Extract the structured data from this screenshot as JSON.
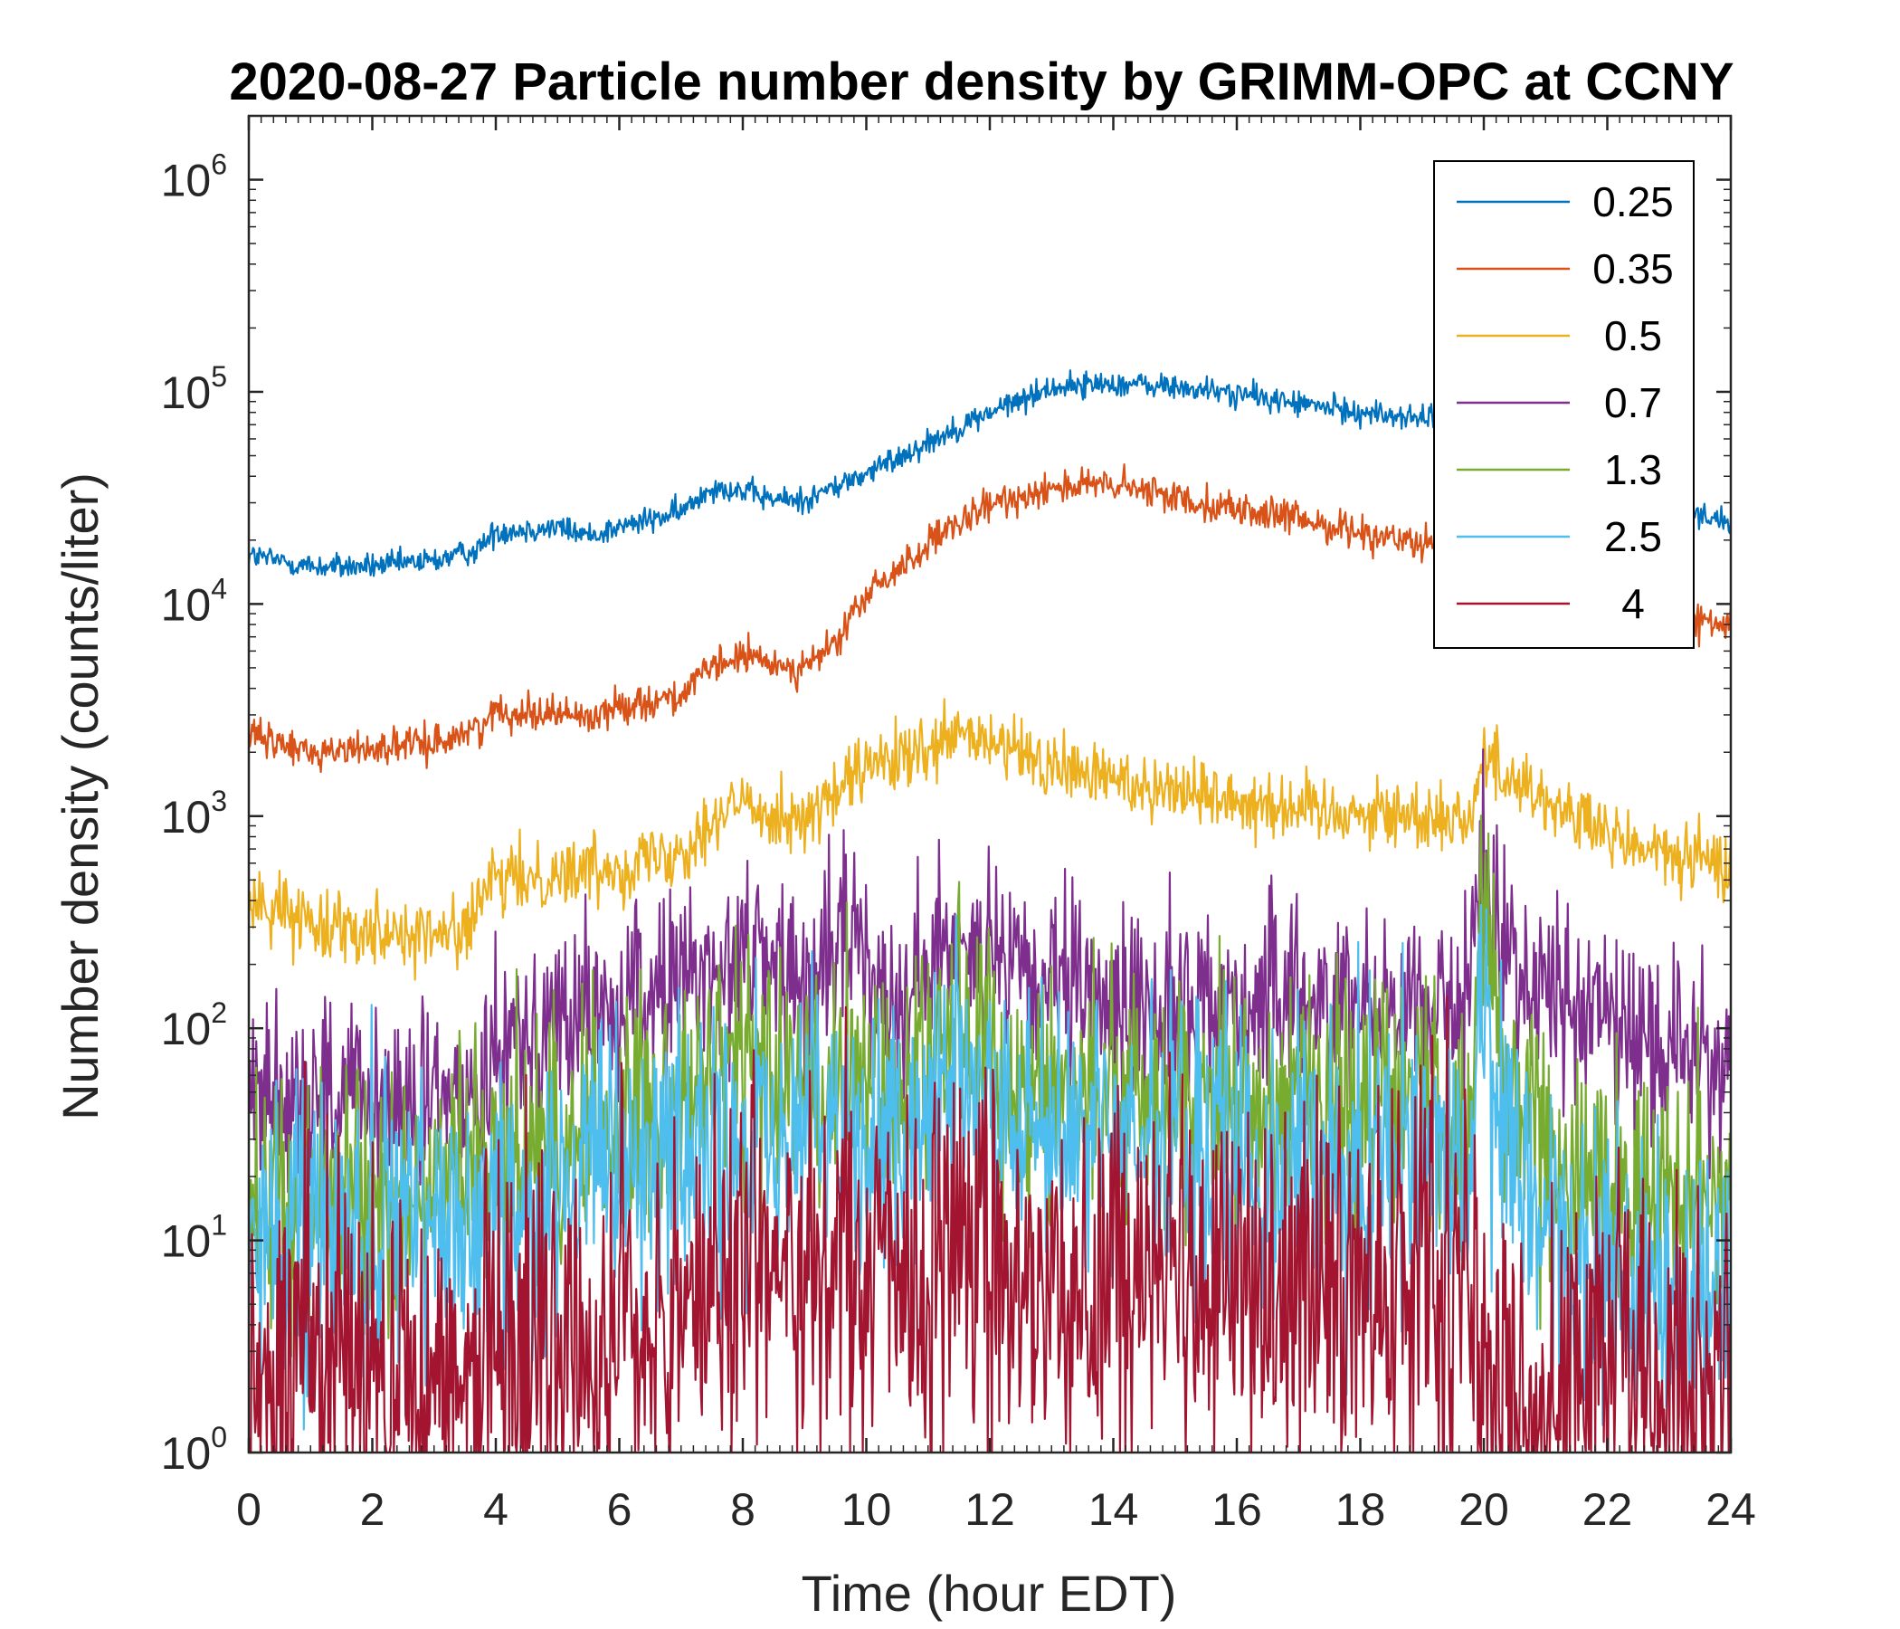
{
  "chart_data": {
    "type": "line",
    "title": "2020-08-27 Particle number density by GRIMM-OPC at CCNY",
    "xlabel": "Time (hour EDT)",
    "ylabel": "Number density (counts/liter)",
    "xlim": [
      0,
      24
    ],
    "ylim": [
      1,
      2000000
    ],
    "yscale": "log",
    "x_ticks": [
      0,
      2,
      4,
      6,
      8,
      10,
      12,
      14,
      16,
      18,
      20,
      22,
      24
    ],
    "y_ticks": [
      {
        "base": "10",
        "exp": "0"
      },
      {
        "base": "10",
        "exp": "1"
      },
      {
        "base": "10",
        "exp": "2"
      },
      {
        "base": "10",
        "exp": "3"
      },
      {
        "base": "10",
        "exp": "4"
      },
      {
        "base": "10",
        "exp": "5"
      },
      {
        "base": "10",
        "exp": "6"
      }
    ],
    "grid": false,
    "legend_position": "top-right",
    "series": [
      {
        "name": "0.25",
        "color": "#0072BD",
        "x": [
          0,
          1,
          2,
          3,
          3.7,
          4,
          5,
          5.5,
          6,
          7,
          7.5,
          8,
          8.5,
          9,
          10,
          11,
          12,
          13,
          14,
          15,
          16,
          17,
          18,
          19,
          20,
          21,
          22,
          23,
          24
        ],
        "y": [
          17000,
          15000,
          15000,
          16000,
          18000,
          22000,
          23000,
          21000,
          23000,
          27000,
          36000,
          34000,
          31000,
          31000,
          41000,
          58000,
          80000,
          105000,
          110000,
          105000,
          98000,
          88000,
          80000,
          75000,
          68000,
          52000,
          40000,
          30000,
          24000
        ],
        "noise": 0.03
      },
      {
        "name": "0.35",
        "color": "#D95319",
        "x": [
          0,
          1,
          2,
          3,
          3.7,
          4,
          5,
          5.5,
          6,
          7,
          7.5,
          8,
          8.5,
          9,
          9.5,
          10,
          11,
          12,
          13,
          14,
          15,
          16,
          17,
          18,
          19,
          20,
          21,
          22,
          23,
          24
        ],
        "y": [
          2400,
          2000,
          2100,
          2200,
          2600,
          3100,
          3100,
          2900,
          3300,
          3700,
          5000,
          5700,
          5200,
          5000,
          6500,
          11000,
          19000,
          29000,
          36000,
          36000,
          32000,
          28000,
          25000,
          22000,
          19000,
          16000,
          12500,
          10000,
          8500,
          8000
        ],
        "noise": 0.04
      },
      {
        "name": "0.5",
        "color": "#EDB120",
        "x": [
          0,
          1,
          2,
          3,
          3.6,
          3.9,
          5,
          6,
          7,
          7.5,
          8,
          8.5,
          9,
          9.5,
          10,
          11,
          11.5,
          12,
          13,
          14,
          15,
          16,
          17,
          18,
          19,
          19.8,
          20,
          20.5,
          21,
          22,
          23,
          24
        ],
        "y": [
          400,
          320,
          300,
          270,
          310,
          480,
          540,
          580,
          700,
          950,
          1150,
          1050,
          950,
          1250,
          1700,
          1950,
          2400,
          2200,
          1700,
          1500,
          1350,
          1200,
          1100,
          1050,
          1000,
          1000,
          1900,
          1500,
          1200,
          800,
          650,
          580
        ],
        "noise": 0.08
      },
      {
        "name": "0.7",
        "color": "#7E2F8E",
        "x": [
          0,
          1,
          2,
          3,
          3.6,
          4,
          5,
          6,
          6.5,
          7,
          7.5,
          8,
          8.5,
          9,
          9.5,
          9.8,
          10,
          10.5,
          11,
          11.5,
          12,
          13,
          14,
          15,
          16,
          17,
          18,
          19,
          19.8,
          19.95,
          20.2,
          20.6,
          21,
          22,
          23,
          24
        ],
        "y": [
          55,
          50,
          45,
          42,
          48,
          90,
          110,
          120,
          150,
          160,
          190,
          230,
          210,
          140,
          220,
          330,
          180,
          150,
          170,
          330,
          190,
          150,
          130,
          125,
          130,
          135,
          140,
          130,
          140,
          650,
          300,
          180,
          150,
          110,
          80,
          70
        ],
        "noise": 0.22
      },
      {
        "name": "1.3",
        "color": "#77AC30",
        "x": [
          0,
          1,
          2,
          3,
          4,
          5,
          6,
          7,
          8,
          9,
          10,
          11,
          11.5,
          12,
          13,
          14,
          15,
          16,
          17,
          18,
          19,
          19.8,
          19.95,
          20.3,
          21,
          22,
          23,
          24
        ],
        "y": [
          14,
          15,
          15,
          16,
          25,
          30,
          40,
          50,
          70,
          55,
          50,
          70,
          120,
          60,
          50,
          50,
          50,
          45,
          50,
          50,
          45,
          40,
          420,
          70,
          25,
          18,
          16,
          15
        ],
        "noise": 0.3
      },
      {
        "name": "2.5",
        "color": "#4DBEEE",
        "x": [
          0,
          1,
          2,
          3,
          4,
          5,
          6,
          7,
          8,
          9,
          10,
          11,
          11.5,
          12,
          13,
          14,
          15,
          16,
          17,
          18,
          19,
          19.8,
          19.95,
          20.3,
          21,
          22,
          23,
          24
        ],
        "y": [
          12,
          11,
          11,
          12,
          14,
          16,
          20,
          25,
          28,
          30,
          28,
          32,
          80,
          35,
          30,
          30,
          28,
          26,
          25,
          24,
          22,
          20,
          140,
          25,
          10,
          7,
          6,
          6
        ],
        "noise": 0.35
      },
      {
        "name": "4",
        "color": "#A2142F",
        "x": [
          0,
          1,
          2,
          3,
          4,
          5,
          6,
          7,
          7.7,
          8,
          9,
          10,
          11,
          11.5,
          12,
          13,
          14,
          15,
          16,
          17,
          18,
          19,
          19.8,
          20,
          21,
          22,
          23,
          24
        ],
        "y": [
          3,
          3,
          3,
          2.5,
          3,
          3,
          3.5,
          5,
          7,
          8,
          7,
          6,
          7,
          14,
          7,
          6,
          6,
          7,
          6,
          7,
          7,
          7,
          6,
          2,
          2,
          2,
          2,
          2
        ],
        "noise": 0.45
      }
    ]
  }
}
